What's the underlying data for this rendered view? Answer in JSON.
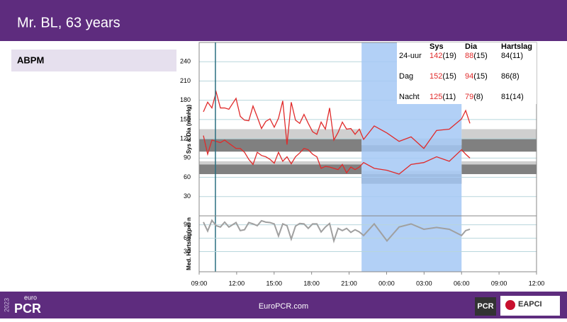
{
  "header": {
    "title": "Mr. BL, 63 years"
  },
  "sidebar": {
    "label": "ABPM"
  },
  "table": {
    "header": [
      "Sys",
      "Dia",
      "Hartslag"
    ],
    "rows": [
      [
        "24-uur",
        "142",
        "(19)",
        "88",
        "(15)",
        "84(11)"
      ],
      [
        "Dag",
        "152",
        "(15)",
        "94",
        "(15)",
        "86(8)"
      ],
      [
        "Nacht",
        "125",
        "(11)",
        "79",
        "(8)",
        "81(14)"
      ]
    ]
  },
  "footer": {
    "year": "2023",
    "logo_top": "euro",
    "logo": "PCR",
    "url": "EuroPCR.com",
    "pcr": "PCR",
    "eapci": "EAPCI"
  },
  "chart_data": [
    {
      "type": "line",
      "ylabel": "Sys & Dia (mmHg)",
      "xlim": [
        9,
        36
      ],
      "ylim": [
        0,
        270
      ],
      "yticks": [
        30,
        60,
        90,
        120,
        150,
        180,
        210,
        240
      ],
      "grid": true,
      "highlight_x": [
        22,
        30
      ],
      "marker_x": 10.3,
      "highlight_color": "#a4c8f4",
      "bands": [
        {
          "x": [
            9,
            22
          ],
          "y": [
            120,
            135
          ],
          "color": "#cfcfcf"
        },
        {
          "x": [
            9,
            22
          ],
          "y": [
            100,
            120
          ],
          "color": "#808080"
        },
        {
          "x": [
            30,
            36
          ],
          "y": [
            120,
            135
          ],
          "color": "#cfcfcf"
        },
        {
          "x": [
            30,
            36
          ],
          "y": [
            100,
            120
          ],
          "color": "#808080"
        },
        {
          "x": [
            22,
            30
          ],
          "y": [
            110,
            120
          ],
          "color": "#cfcfcf"
        },
        {
          "x": [
            22,
            30
          ],
          "y": [
            100,
            110
          ],
          "color": "#808080"
        },
        {
          "x": [
            9,
            22
          ],
          "y": [
            80,
            85
          ],
          "color": "#cfcfcf"
        },
        {
          "x": [
            9,
            22
          ],
          "y": [
            65,
            80
          ],
          "color": "#808080"
        },
        {
          "x": [
            30,
            36
          ],
          "y": [
            80,
            85
          ],
          "color": "#cfcfcf"
        },
        {
          "x": [
            30,
            36
          ],
          "y": [
            65,
            80
          ],
          "color": "#808080"
        },
        {
          "x": [
            22,
            30
          ],
          "y": [
            65,
            70
          ],
          "color": "#cfcfcf"
        },
        {
          "x": [
            22,
            30
          ],
          "y": [
            50,
            65
          ],
          "color": "#808080"
        }
      ],
      "x": [
        9.34,
        9.68,
        10.02,
        10.36,
        10.7,
        11.04,
        11.38,
        11.95,
        12.29,
        12.63,
        12.97,
        13.31,
        13.65,
        13.99,
        14.33,
        14.67,
        15.01,
        15.35,
        15.69,
        16.03,
        16.37,
        16.71,
        17.05,
        17.39,
        17.73,
        18.08,
        18.42,
        18.76,
        19.1,
        19.44,
        19.78,
        20.12,
        20.46,
        20.8,
        21.14,
        21.48,
        21.82,
        22.16,
        23.01,
        24.03,
        25,
        25.96,
        26.98,
        28,
        29.02,
        30,
        30.33,
        30.67
      ],
      "series": [
        {
          "name": "Sys",
          "color": "#e02a2a",
          "values": [
            162,
            177,
            168,
            193,
            168,
            168,
            166,
            183,
            155,
            149,
            148,
            171,
            154,
            136,
            147,
            151,
            138,
            152,
            179,
            111,
            177,
            149,
            144,
            158,
            144,
            131,
            127,
            146,
            135,
            168,
            118,
            130,
            146,
            135,
            136,
            127,
            135,
            119,
            140,
            129,
            116,
            123,
            105,
            133,
            135,
            151,
            164,
            144
          ]
        },
        {
          "name": "Dia",
          "color": "#e02a2a",
          "values": [
            125,
            96,
            118,
            116,
            114,
            118,
            113,
            105,
            105,
            99,
            88,
            80,
            99,
            94,
            92,
            88,
            82,
            99,
            85,
            92,
            81,
            92,
            98,
            105,
            103,
            96,
            92,
            74,
            77,
            76,
            74,
            72,
            80,
            67,
            76,
            72,
            76,
            83,
            74,
            71,
            65,
            80,
            83,
            92,
            85,
            103,
            96,
            90
          ]
        }
      ]
    },
    {
      "type": "line",
      "ylabel": "Med.  Hartslag(per n",
      "xlim": [
        9,
        36
      ],
      "ylim": [
        -15,
        110
      ],
      "yticks": [
        30,
        60,
        90
      ],
      "grid": true,
      "xticks": [
        {
          "value": 9,
          "label": "09:00"
        },
        {
          "value": 12,
          "label": "12:00"
        },
        {
          "value": 15,
          "label": "15:00"
        },
        {
          "value": 18,
          "label": "18:00"
        },
        {
          "value": 21,
          "label": "21:00"
        },
        {
          "value": 24,
          "label": "00:00"
        },
        {
          "value": 27,
          "label": "03:00"
        },
        {
          "value": 30,
          "label": "06:00"
        },
        {
          "value": 33,
          "label": "09:00"
        },
        {
          "value": 36,
          "label": "12:00"
        }
      ],
      "x": [
        9.34,
        9.68,
        10.02,
        10.36,
        10.7,
        11.04,
        11.38,
        11.95,
        12.29,
        12.63,
        12.97,
        13.31,
        13.65,
        13.99,
        14.33,
        14.67,
        15.01,
        15.35,
        15.69,
        16.03,
        16.37,
        16.71,
        17.05,
        17.39,
        17.73,
        18.08,
        18.42,
        18.76,
        19.1,
        19.44,
        19.78,
        20.12,
        20.46,
        20.8,
        21.14,
        21.48,
        21.82,
        22.16,
        23.01,
        24.03,
        25,
        25.96,
        26.98,
        28,
        29.02,
        30,
        30.33,
        30.67
      ],
      "series": [
        {
          "name": "Hartslag",
          "color": "#a0a0a0",
          "values": [
            96,
            76,
            100,
            88,
            85,
            96,
            85,
            95,
            77,
            79,
            95,
            92,
            88,
            99,
            96,
            95,
            92,
            65,
            92,
            88,
            58,
            87,
            93,
            92,
            82,
            92,
            92,
            74,
            85,
            93,
            54,
            82,
            77,
            82,
            73,
            79,
            74,
            66,
            92,
            54,
            85,
            92,
            80,
            84,
            80,
            66,
            77,
            80
          ]
        }
      ]
    }
  ]
}
